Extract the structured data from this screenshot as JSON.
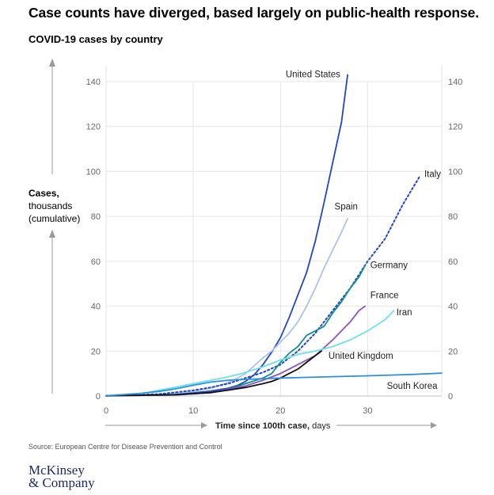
{
  "headline": "Case counts have diverged, based largely on public-health response.",
  "subtitle": "COVID-19 cases by country",
  "ylabel": {
    "bold": "Cases,",
    "line2": "thousands",
    "line3": "(cumulative)"
  },
  "source": "Source: European Centre for Disease Prevention and Control",
  "logo": {
    "line1": "McKinsey",
    "line2": "& Company"
  },
  "chart_data": {
    "type": "line",
    "xlabel_bold": "Time since 100th case,",
    "xlabel_unit": " days",
    "xlim": [
      0,
      38.5
    ],
    "ylim": [
      0,
      140
    ],
    "x_ticks": [
      0,
      10,
      20,
      30
    ],
    "y_ticks": [
      0,
      20,
      40,
      60,
      80,
      100,
      120,
      140
    ],
    "grid": true,
    "series": [
      {
        "name": "United States",
        "color": "#2046c8",
        "dashed": false,
        "label_at": [
          20.6,
          142
        ],
        "points": [
          [
            0,
            0.1
          ],
          [
            4,
            0.3
          ],
          [
            8,
            0.8
          ],
          [
            10,
            1.4
          ],
          [
            12,
            2.2
          ],
          [
            14,
            3.5
          ],
          [
            15,
            4.6
          ],
          [
            16,
            6.5
          ],
          [
            17,
            9.5
          ],
          [
            18,
            14
          ],
          [
            19,
            19.5
          ],
          [
            20,
            26
          ],
          [
            21,
            35
          ],
          [
            22,
            45
          ],
          [
            23,
            55
          ],
          [
            24,
            69
          ],
          [
            25,
            86
          ],
          [
            26,
            104
          ],
          [
            27,
            122
          ],
          [
            27.7,
            143
          ]
        ]
      },
      {
        "name": "Spain",
        "color": "#a9c4ee",
        "dashed": false,
        "label_at": [
          26.2,
          83
        ],
        "points": [
          [
            0,
            0.1
          ],
          [
            6,
            0.6
          ],
          [
            10,
            2
          ],
          [
            12,
            3.5
          ],
          [
            14,
            6
          ],
          [
            15,
            7.8
          ],
          [
            16,
            10
          ],
          [
            17,
            13.5
          ],
          [
            18,
            17
          ],
          [
            19,
            20
          ],
          [
            20,
            24
          ],
          [
            21,
            28
          ],
          [
            22,
            33
          ],
          [
            23,
            40
          ],
          [
            24,
            48
          ],
          [
            25,
            57
          ],
          [
            26,
            65
          ],
          [
            27,
            73
          ],
          [
            27.7,
            79
          ]
        ]
      },
      {
        "name": "Italy",
        "color": "#2046c8",
        "dashed": true,
        "label_at": [
          36.5,
          97.5
        ],
        "points": [
          [
            0,
            0.1
          ],
          [
            6,
            0.8
          ],
          [
            10,
            2.5
          ],
          [
            12,
            3.8
          ],
          [
            14,
            5.5
          ],
          [
            16,
            8
          ],
          [
            18,
            10.5
          ],
          [
            20,
            14
          ],
          [
            22,
            20
          ],
          [
            24,
            28
          ],
          [
            26,
            38
          ],
          [
            28,
            48
          ],
          [
            30,
            60
          ],
          [
            32,
            70
          ],
          [
            34,
            85
          ],
          [
            36,
            98
          ]
        ]
      },
      {
        "name": "Germany",
        "color": "#0f8f92",
        "dashed": false,
        "label_at": [
          30.3,
          57
        ],
        "points": [
          [
            0,
            0.1
          ],
          [
            8,
            0.5
          ],
          [
            12,
            1.5
          ],
          [
            14,
            3
          ],
          [
            16,
            5.5
          ],
          [
            18,
            8
          ],
          [
            19,
            10
          ],
          [
            20,
            15
          ],
          [
            21,
            19
          ],
          [
            22,
            22
          ],
          [
            23,
            27
          ],
          [
            24,
            29
          ],
          [
            25,
            31
          ],
          [
            26,
            37
          ],
          [
            27,
            42
          ],
          [
            28,
            48
          ],
          [
            29,
            53
          ],
          [
            29.7,
            58
          ]
        ]
      },
      {
        "name": "France",
        "color": "#8e52c2",
        "dashed": false,
        "label_at": [
          30.3,
          43.5
        ],
        "points": [
          [
            0,
            0.1
          ],
          [
            8,
            0.5
          ],
          [
            12,
            1.5
          ],
          [
            14,
            3
          ],
          [
            16,
            4.5
          ],
          [
            18,
            7
          ],
          [
            20,
            10
          ],
          [
            22,
            14
          ],
          [
            24,
            18
          ],
          [
            26,
            25
          ],
          [
            28,
            33
          ],
          [
            29,
            38
          ],
          [
            29.7,
            40
          ]
        ]
      },
      {
        "name": "Iran",
        "color": "#6de0f0",
        "dashed": false,
        "label_at": [
          33.3,
          36
        ],
        "points": [
          [
            0,
            0.1
          ],
          [
            4,
            1
          ],
          [
            6,
            2.5
          ],
          [
            8,
            4
          ],
          [
            10,
            5.5
          ],
          [
            12,
            7
          ],
          [
            14,
            8.5
          ],
          [
            16,
            10.5
          ],
          [
            18,
            13
          ],
          [
            20,
            16
          ],
          [
            22,
            18.5
          ],
          [
            24,
            20
          ],
          [
            26,
            22
          ],
          [
            28,
            25
          ],
          [
            30,
            29
          ],
          [
            32,
            34
          ],
          [
            33,
            38
          ]
        ]
      },
      {
        "name": "United Kingdom",
        "color": "#111111",
        "dashed": false,
        "label_at": [
          25.5,
          16.5
        ],
        "points": [
          [
            0,
            0.1
          ],
          [
            8,
            0.6
          ],
          [
            12,
            1.5
          ],
          [
            14,
            2.6
          ],
          [
            16,
            3.8
          ],
          [
            18,
            5.5
          ],
          [
            19,
            6.5
          ],
          [
            20,
            8
          ],
          [
            21,
            10
          ],
          [
            22,
            12
          ],
          [
            23,
            15
          ],
          [
            24,
            18
          ],
          [
            24.7,
            20
          ]
        ]
      },
      {
        "name": "South Korea",
        "color": "#2a8fe0",
        "dashed": false,
        "label_at": [
          32.2,
          3.2
        ],
        "points": [
          [
            0,
            0.1
          ],
          [
            4,
            1.2
          ],
          [
            6,
            2
          ],
          [
            8,
            3.2
          ],
          [
            10,
            4.8
          ],
          [
            12,
            6.2
          ],
          [
            14,
            7
          ],
          [
            16,
            7.4
          ],
          [
            18,
            7.7
          ],
          [
            20,
            8
          ],
          [
            25,
            8.5
          ],
          [
            30,
            9
          ],
          [
            35,
            9.6
          ],
          [
            38.5,
            10.2
          ]
        ]
      }
    ]
  }
}
